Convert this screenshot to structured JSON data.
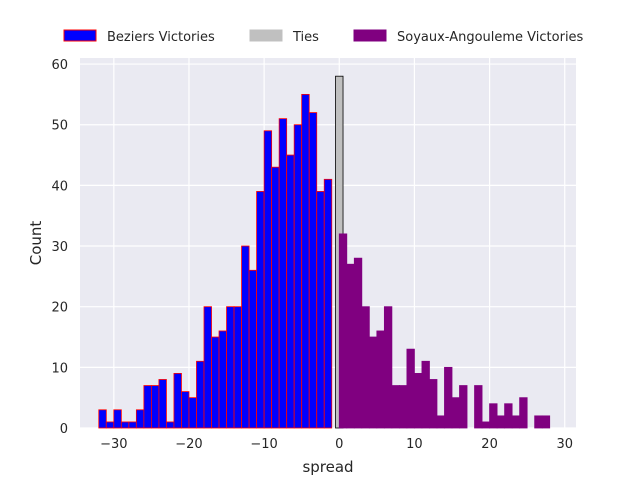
{
  "chart_data": {
    "type": "bar",
    "xlabel": "spread",
    "ylabel": "Count",
    "xlim": [
      -34.5,
      31.5
    ],
    "ylim": [
      0,
      61
    ],
    "x_ticks": [
      -30,
      -20,
      -10,
      0,
      10,
      20,
      30
    ],
    "y_ticks": [
      0,
      10,
      20,
      30,
      40,
      50,
      60
    ],
    "grid": true,
    "legend_position": "top, above plot",
    "bin_width": 1,
    "legend": [
      {
        "label": "Beziers Victories",
        "color": "#0000ff",
        "edge": "#ff0000"
      },
      {
        "label": "Ties",
        "color": "#c0c0c0",
        "edge": "#c0c0c0"
      },
      {
        "label": "Soyaux-Angouleme Victories",
        "color": "#800080",
        "edge": "#800080"
      }
    ],
    "series": [
      {
        "name": "Beziers Victories",
        "color": "#0000ff",
        "edge": "#ff0000",
        "x": [
          -32,
          -31,
          -30,
          -29,
          -28,
          -27,
          -26,
          -25,
          -24,
          -23,
          -22,
          -21,
          -20,
          -19,
          -18,
          -17,
          -16,
          -15,
          -14,
          -13,
          -12,
          -11,
          -10,
          -9,
          -8,
          -7,
          -6,
          -5,
          -4,
          -3,
          -2,
          -1
        ],
        "values": [
          3,
          1,
          3,
          1,
          1,
          3,
          7,
          7,
          8,
          1,
          9,
          6,
          5,
          11,
          20,
          15,
          16,
          20,
          20,
          30,
          26,
          39,
          49,
          43,
          51,
          45,
          50,
          55,
          52,
          39,
          41,
          0
        ]
      },
      {
        "name": "Ties",
        "color": "#c0c0c0",
        "edge": "#000000",
        "x": [
          -0.5
        ],
        "values": [
          58
        ]
      },
      {
        "name": "Soyaux-Angouleme Victories",
        "color": "#800080",
        "edge": "#800080",
        "x": [
          0,
          1,
          2,
          3,
          4,
          5,
          6,
          7,
          8,
          9,
          10,
          11,
          12,
          13,
          14,
          15,
          16,
          17,
          18,
          19,
          20,
          21,
          22,
          23,
          24,
          25,
          26,
          27
        ],
        "values": [
          32,
          27,
          28,
          20,
          15,
          16,
          20,
          7,
          7,
          13,
          9,
          11,
          8,
          2,
          10,
          5,
          7,
          0,
          7,
          1,
          4,
          2,
          4,
          2,
          5,
          0,
          2,
          2
        ]
      }
    ]
  }
}
